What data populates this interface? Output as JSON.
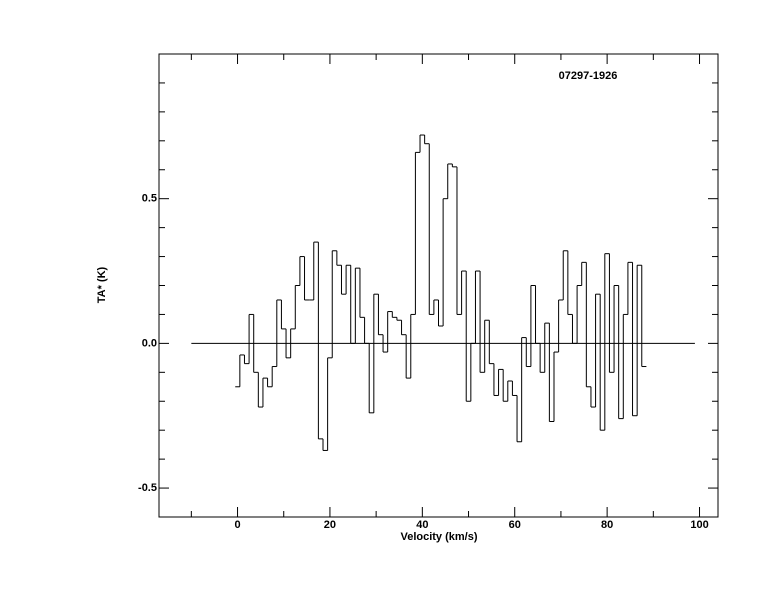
{
  "chart_data": {
    "type": "step",
    "title": "07297-1926",
    "xlabel": "Velocity (km/s)",
    "ylabel": "TA* (K)",
    "x": [
      0,
      1,
      2,
      3,
      4,
      5,
      6,
      7,
      8,
      9,
      10,
      11,
      12,
      13,
      14,
      15,
      16,
      17,
      18,
      19,
      20,
      21,
      22,
      23,
      24,
      25,
      26,
      27,
      28,
      29,
      30,
      31,
      32,
      33,
      34,
      35,
      36,
      37,
      38,
      39,
      40,
      41,
      42,
      43,
      44,
      45,
      46,
      47,
      48,
      49,
      50,
      51,
      52,
      53,
      54,
      55,
      56,
      57,
      58,
      59,
      60,
      61,
      62,
      63,
      64,
      65,
      66,
      67,
      68,
      69,
      70,
      71,
      72,
      73,
      74,
      75,
      76,
      77,
      78,
      79,
      80,
      81,
      82,
      83,
      84,
      85,
      86,
      87,
      88
    ],
    "values": [
      -0.15,
      -0.04,
      -0.07,
      0.1,
      -0.1,
      -0.22,
      -0.12,
      -0.15,
      -0.08,
      0.15,
      0.05,
      -0.05,
      0.05,
      0.2,
      0.3,
      0.15,
      0.15,
      0.35,
      -0.33,
      -0.37,
      -0.05,
      0.32,
      0.27,
      0.17,
      0.27,
      0.0,
      0.26,
      0.09,
      0.0,
      -0.24,
      0.17,
      0.03,
      -0.03,
      0.11,
      0.09,
      0.08,
      0.03,
      -0.12,
      0.1,
      0.66,
      0.72,
      0.69,
      0.1,
      0.15,
      0.06,
      0.5,
      0.62,
      0.61,
      0.1,
      0.25,
      -0.2,
      0.0,
      0.25,
      -0.1,
      0.08,
      -0.07,
      -0.18,
      -0.09,
      -0.2,
      -0.13,
      -0.18,
      -0.34,
      0.02,
      -0.08,
      0.2,
      0.0,
      -0.1,
      0.07,
      -0.27,
      -0.03,
      0.15,
      0.32,
      0.1,
      0.0,
      0.2,
      0.28,
      -0.15,
      -0.22,
      0.17,
      -0.3,
      0.31,
      -0.1,
      0.2,
      -0.26,
      0.1,
      0.28,
      -0.25,
      0.27,
      -0.08
    ],
    "color": "#000000",
    "xlim": [
      -17,
      104
    ],
    "ylim": [
      -0.6,
      1.0
    ],
    "xticks": [
      0,
      20,
      40,
      60,
      80,
      100
    ],
    "xminorticks": [
      -10,
      10,
      30,
      50,
      70,
      90
    ],
    "yticks": [
      -0.5,
      {
        "value": 0,
        "label": "0.0"
      },
      0.5
    ],
    "yminorticks": [
      -0.4,
      -0.3,
      -0.2,
      -0.1,
      0.1,
      0.2,
      0.3,
      0.4,
      0.6,
      0.7,
      0.8,
      0.9
    ],
    "hline": {
      "y": 0,
      "x": [
        -10,
        99
      ]
    }
  }
}
